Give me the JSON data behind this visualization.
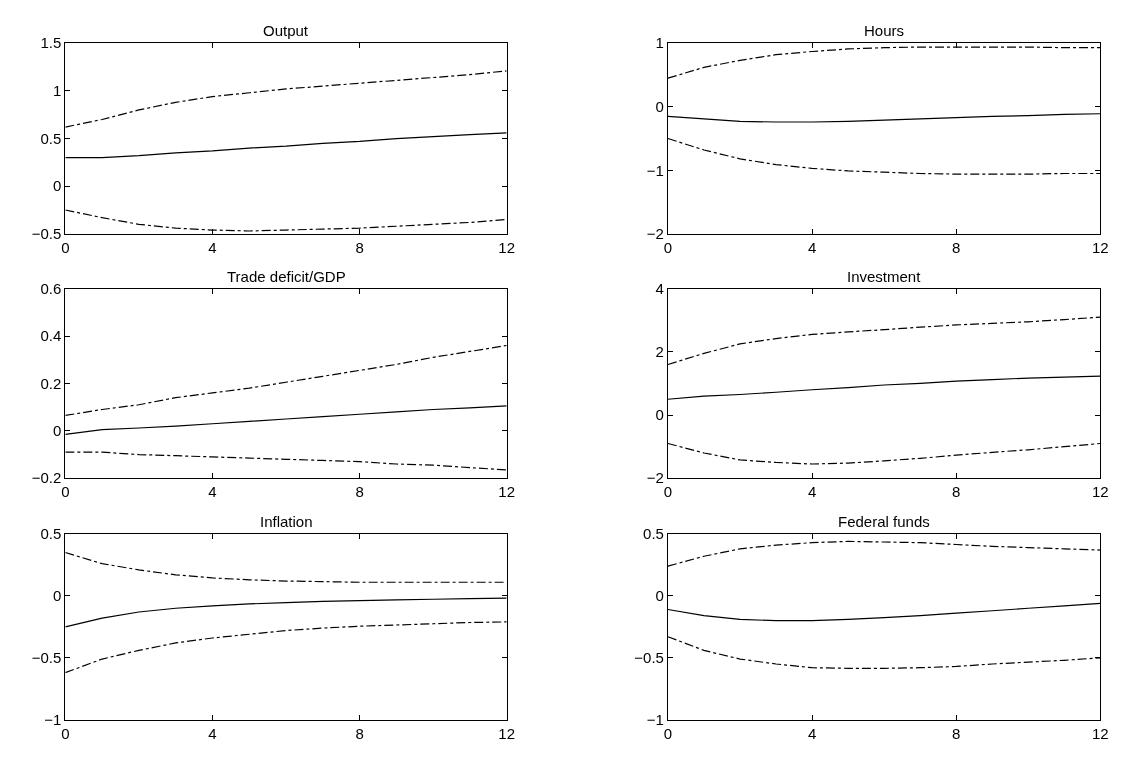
{
  "chart_data": [
    {
      "type": "line",
      "title": "Output",
      "x": [
        0,
        1,
        2,
        3,
        4,
        5,
        6,
        7,
        8,
        9,
        10,
        11,
        12
      ],
      "xlim": [
        0,
        12
      ],
      "xticks": [
        0,
        4,
        8,
        12
      ],
      "ylim": [
        -0.5,
        1.5
      ],
      "yticks": [
        -0.5,
        0,
        0.5,
        1,
        1.5
      ],
      "series": [
        {
          "color": "#000000",
          "line_style": "solid",
          "values": [
            0.3,
            0.3,
            0.32,
            0.35,
            0.37,
            0.4,
            0.42,
            0.45,
            0.47,
            0.5,
            0.52,
            0.54,
            0.56
          ]
        },
        {
          "color": "#000000",
          "line_style": "dashdot",
          "values": [
            0.62,
            0.7,
            0.8,
            0.88,
            0.94,
            0.98,
            1.02,
            1.05,
            1.08,
            1.11,
            1.14,
            1.17,
            1.21
          ]
        },
        {
          "color": "#000000",
          "line_style": "dashdot",
          "values": [
            -0.25,
            -0.33,
            -0.4,
            -0.44,
            -0.46,
            -0.47,
            -0.46,
            -0.45,
            -0.44,
            -0.42,
            -0.4,
            -0.38,
            -0.35
          ]
        }
      ]
    },
    {
      "type": "line",
      "title": "Hours",
      "x": [
        0,
        1,
        2,
        3,
        4,
        5,
        6,
        7,
        8,
        9,
        10,
        11,
        12
      ],
      "xlim": [
        0,
        12
      ],
      "xticks": [
        0,
        4,
        8,
        12
      ],
      "ylim": [
        -2,
        1
      ],
      "yticks": [
        -2,
        -1,
        0,
        1
      ],
      "series": [
        {
          "color": "#000000",
          "line_style": "solid",
          "values": [
            -0.15,
            -0.19,
            -0.23,
            -0.24,
            -0.24,
            -0.23,
            -0.21,
            -0.19,
            -0.17,
            -0.15,
            -0.14,
            -0.12,
            -0.11
          ]
        },
        {
          "color": "#000000",
          "line_style": "dashdot",
          "values": [
            0.45,
            0.62,
            0.73,
            0.82,
            0.87,
            0.91,
            0.93,
            0.94,
            0.94,
            0.94,
            0.94,
            0.93,
            0.93
          ]
        },
        {
          "color": "#000000",
          "line_style": "dashdot",
          "values": [
            -0.5,
            -0.68,
            -0.82,
            -0.91,
            -0.97,
            -1.01,
            -1.03,
            -1.05,
            -1.06,
            -1.06,
            -1.06,
            -1.05,
            -1.05
          ]
        }
      ]
    },
    {
      "type": "line",
      "title": "Trade deficit/GDP",
      "x": [
        0,
        1,
        2,
        3,
        4,
        5,
        6,
        7,
        8,
        9,
        10,
        11,
        12
      ],
      "xlim": [
        0,
        12
      ],
      "xticks": [
        0,
        4,
        8,
        12
      ],
      "ylim": [
        -0.2,
        0.6
      ],
      "yticks": [
        -0.2,
        0,
        0.2,
        0.4,
        0.6
      ],
      "series": [
        {
          "color": "#000000",
          "line_style": "solid",
          "values": [
            -0.015,
            0.005,
            0.012,
            0.02,
            0.03,
            0.04,
            0.05,
            0.06,
            0.07,
            0.08,
            0.09,
            0.097,
            0.105
          ]
        },
        {
          "color": "#000000",
          "line_style": "dashdot",
          "values": [
            0.065,
            0.09,
            0.11,
            0.14,
            0.16,
            0.18,
            0.205,
            0.23,
            0.255,
            0.28,
            0.31,
            0.335,
            0.36
          ]
        },
        {
          "color": "#000000",
          "line_style": "dashdot",
          "values": [
            -0.09,
            -0.09,
            -0.1,
            -0.105,
            -0.11,
            -0.115,
            -0.12,
            -0.125,
            -0.13,
            -0.14,
            -0.145,
            -0.155,
            -0.165
          ]
        }
      ]
    },
    {
      "type": "line",
      "title": "Investment",
      "x": [
        0,
        1,
        2,
        3,
        4,
        5,
        6,
        7,
        8,
        9,
        10,
        11,
        12
      ],
      "xlim": [
        0,
        12
      ],
      "xticks": [
        0,
        4,
        8,
        12
      ],
      "ylim": [
        -2,
        4
      ],
      "yticks": [
        -2,
        0,
        2,
        4
      ],
      "series": [
        {
          "color": "#000000",
          "line_style": "solid",
          "values": [
            0.5,
            0.6,
            0.65,
            0.72,
            0.8,
            0.87,
            0.95,
            1.0,
            1.07,
            1.12,
            1.17,
            1.2,
            1.23
          ]
        },
        {
          "color": "#000000",
          "line_style": "dashdot",
          "values": [
            1.6,
            1.95,
            2.25,
            2.42,
            2.55,
            2.63,
            2.7,
            2.78,
            2.85,
            2.9,
            2.95,
            3.02,
            3.1
          ]
        },
        {
          "color": "#000000",
          "line_style": "dashdot",
          "values": [
            -0.9,
            -1.2,
            -1.42,
            -1.5,
            -1.55,
            -1.52,
            -1.45,
            -1.37,
            -1.27,
            -1.18,
            -1.1,
            -1.0,
            -0.9
          ]
        }
      ]
    },
    {
      "type": "line",
      "title": "Inflation",
      "x": [
        0,
        1,
        2,
        3,
        4,
        5,
        6,
        7,
        8,
        9,
        10,
        11,
        12
      ],
      "xlim": [
        0,
        12
      ],
      "xticks": [
        0,
        4,
        8,
        12
      ],
      "ylim": [
        -1,
        0.5
      ],
      "yticks": [
        -1,
        -0.5,
        0,
        0.5
      ],
      "series": [
        {
          "color": "#000000",
          "line_style": "solid",
          "values": [
            -0.25,
            -0.18,
            -0.13,
            -0.1,
            -0.08,
            -0.065,
            -0.055,
            -0.045,
            -0.038,
            -0.032,
            -0.027,
            -0.022,
            -0.018
          ]
        },
        {
          "color": "#000000",
          "line_style": "dashdot",
          "values": [
            0.35,
            0.26,
            0.21,
            0.17,
            0.145,
            0.13,
            0.12,
            0.115,
            0.11,
            0.11,
            0.11,
            0.11,
            0.11
          ]
        },
        {
          "color": "#000000",
          "line_style": "dashdot",
          "values": [
            -0.62,
            -0.51,
            -0.44,
            -0.38,
            -0.34,
            -0.31,
            -0.28,
            -0.26,
            -0.245,
            -0.235,
            -0.225,
            -0.215,
            -0.21
          ]
        }
      ]
    },
    {
      "type": "line",
      "title": "Federal funds",
      "x": [
        0,
        1,
        2,
        3,
        4,
        5,
        6,
        7,
        8,
        9,
        10,
        11,
        12
      ],
      "xlim": [
        0,
        12
      ],
      "xticks": [
        0,
        4,
        8,
        12
      ],
      "ylim": [
        -1,
        0.5
      ],
      "yticks": [
        -1,
        -0.5,
        0,
        0.5
      ],
      "series": [
        {
          "color": "#000000",
          "line_style": "solid",
          "values": [
            -0.11,
            -0.16,
            -0.19,
            -0.2,
            -0.2,
            -0.19,
            -0.175,
            -0.16,
            -0.14,
            -0.12,
            -0.1,
            -0.08,
            -0.06
          ]
        },
        {
          "color": "#000000",
          "line_style": "dashdot",
          "values": [
            0.24,
            0.32,
            0.38,
            0.41,
            0.43,
            0.44,
            0.435,
            0.43,
            0.415,
            0.4,
            0.39,
            0.38,
            0.37
          ]
        },
        {
          "color": "#000000",
          "line_style": "dashdot",
          "values": [
            -0.33,
            -0.44,
            -0.51,
            -0.55,
            -0.58,
            -0.585,
            -0.585,
            -0.58,
            -0.57,
            -0.55,
            -0.535,
            -0.52,
            -0.5
          ]
        }
      ]
    }
  ]
}
